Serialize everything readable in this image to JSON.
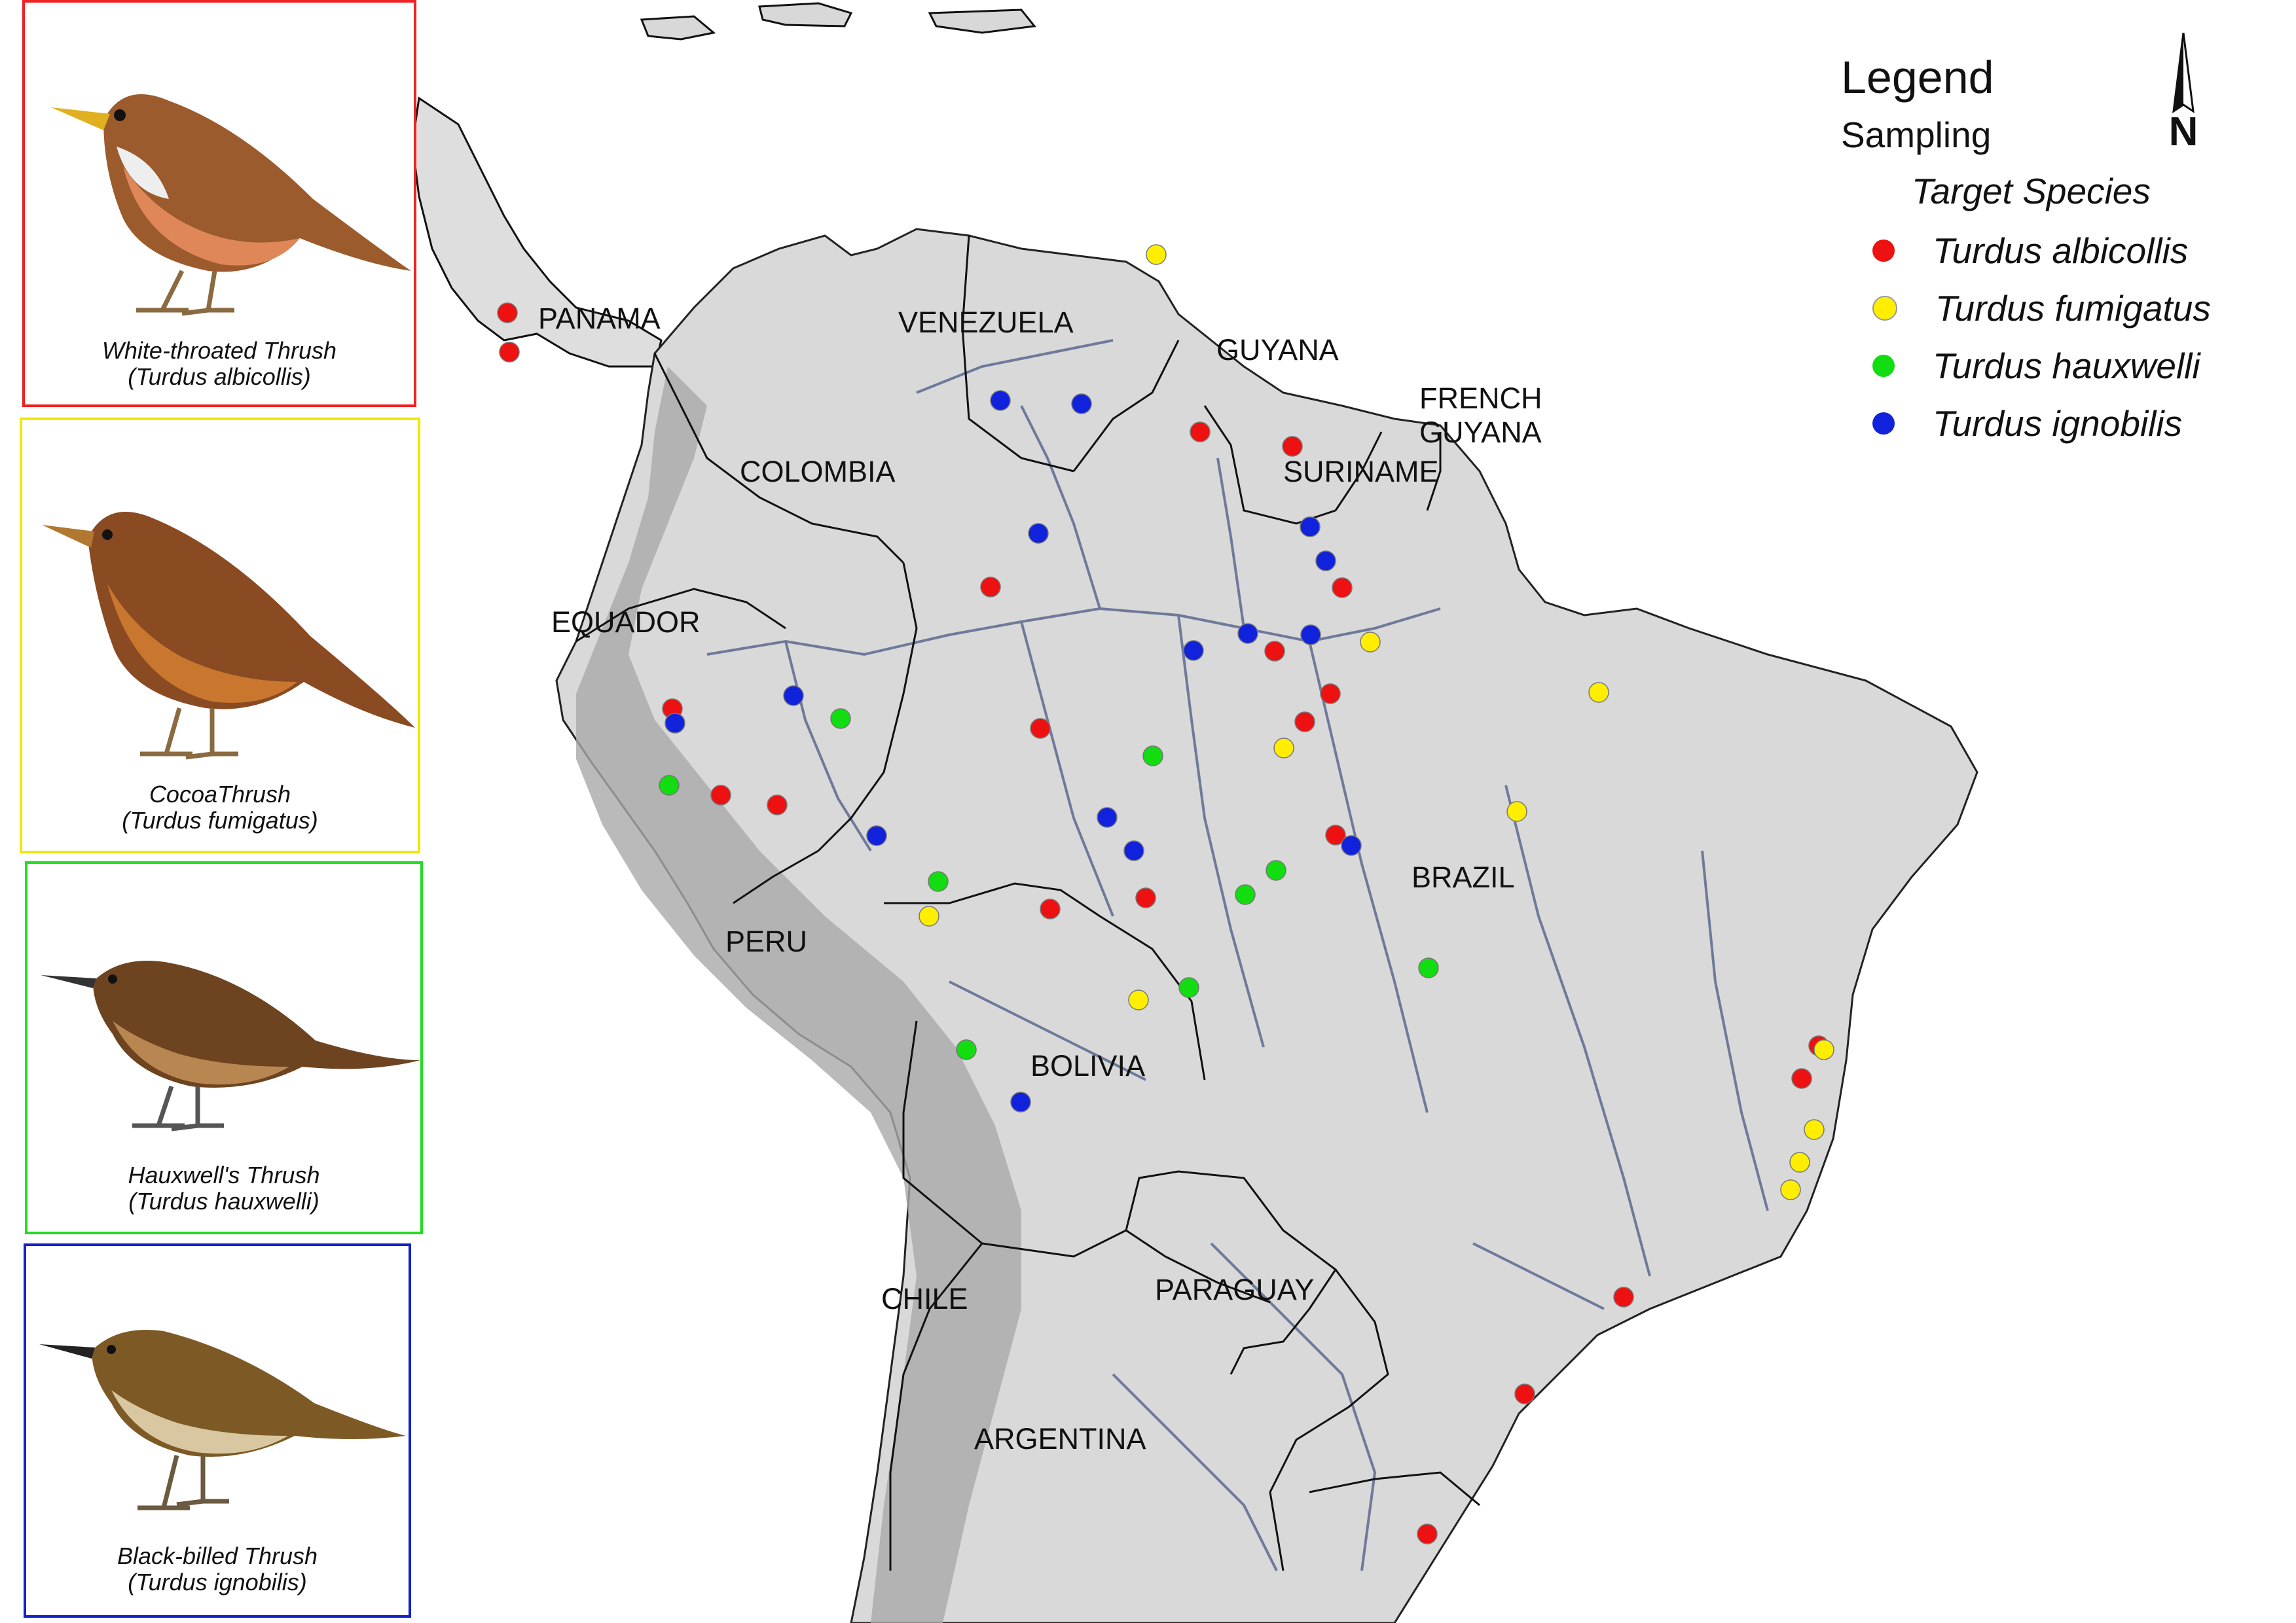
{
  "legend": {
    "title": "Legend",
    "subtitle": "Sampling",
    "header": "Target Species",
    "items": [
      {
        "label": "Turdus albicollis",
        "color": "#ee1111"
      },
      {
        "label": "Turdus fumigatus",
        "color": "#ffee00"
      },
      {
        "label": "Turdus hauxwelli",
        "color": "#11dd11"
      },
      {
        "label": "Turdus ignobilis",
        "color": "#1122dd"
      }
    ]
  },
  "birds": [
    {
      "common": "White-throated Thrush",
      "latin": "(Turdus albicollis)",
      "border": "#ee2222"
    },
    {
      "common": "CocoaThrush",
      "latin": "(Turdus fumigatus)",
      "border": "#f2e600"
    },
    {
      "common": "Hauxwell's Thrush",
      "latin": "(Turdus hauxwelli)",
      "border": "#22dd22"
    },
    {
      "common": "Black-billed Thrush",
      "latin": "(Turdus ignobilis)",
      "border": "#1122cc"
    }
  ],
  "countries": {
    "panama": "PANAMA",
    "venezuela": "VENEZUELA",
    "guyana": "GUYANA",
    "french_guyana_1": "FRENCH",
    "french_guyana_2": "GUYANA",
    "suriname": "SURINAME",
    "colombia": "COLOMBIA",
    "equador": "EQUADOR",
    "peru": "PERU",
    "brazil": "BRAZIL",
    "bolivia": "BOLIVIA",
    "chile": "CHILE",
    "paraguay": "PARAGUAY",
    "argentina": "ARGENTINA"
  },
  "compass": {
    "letter": "N"
  }
}
